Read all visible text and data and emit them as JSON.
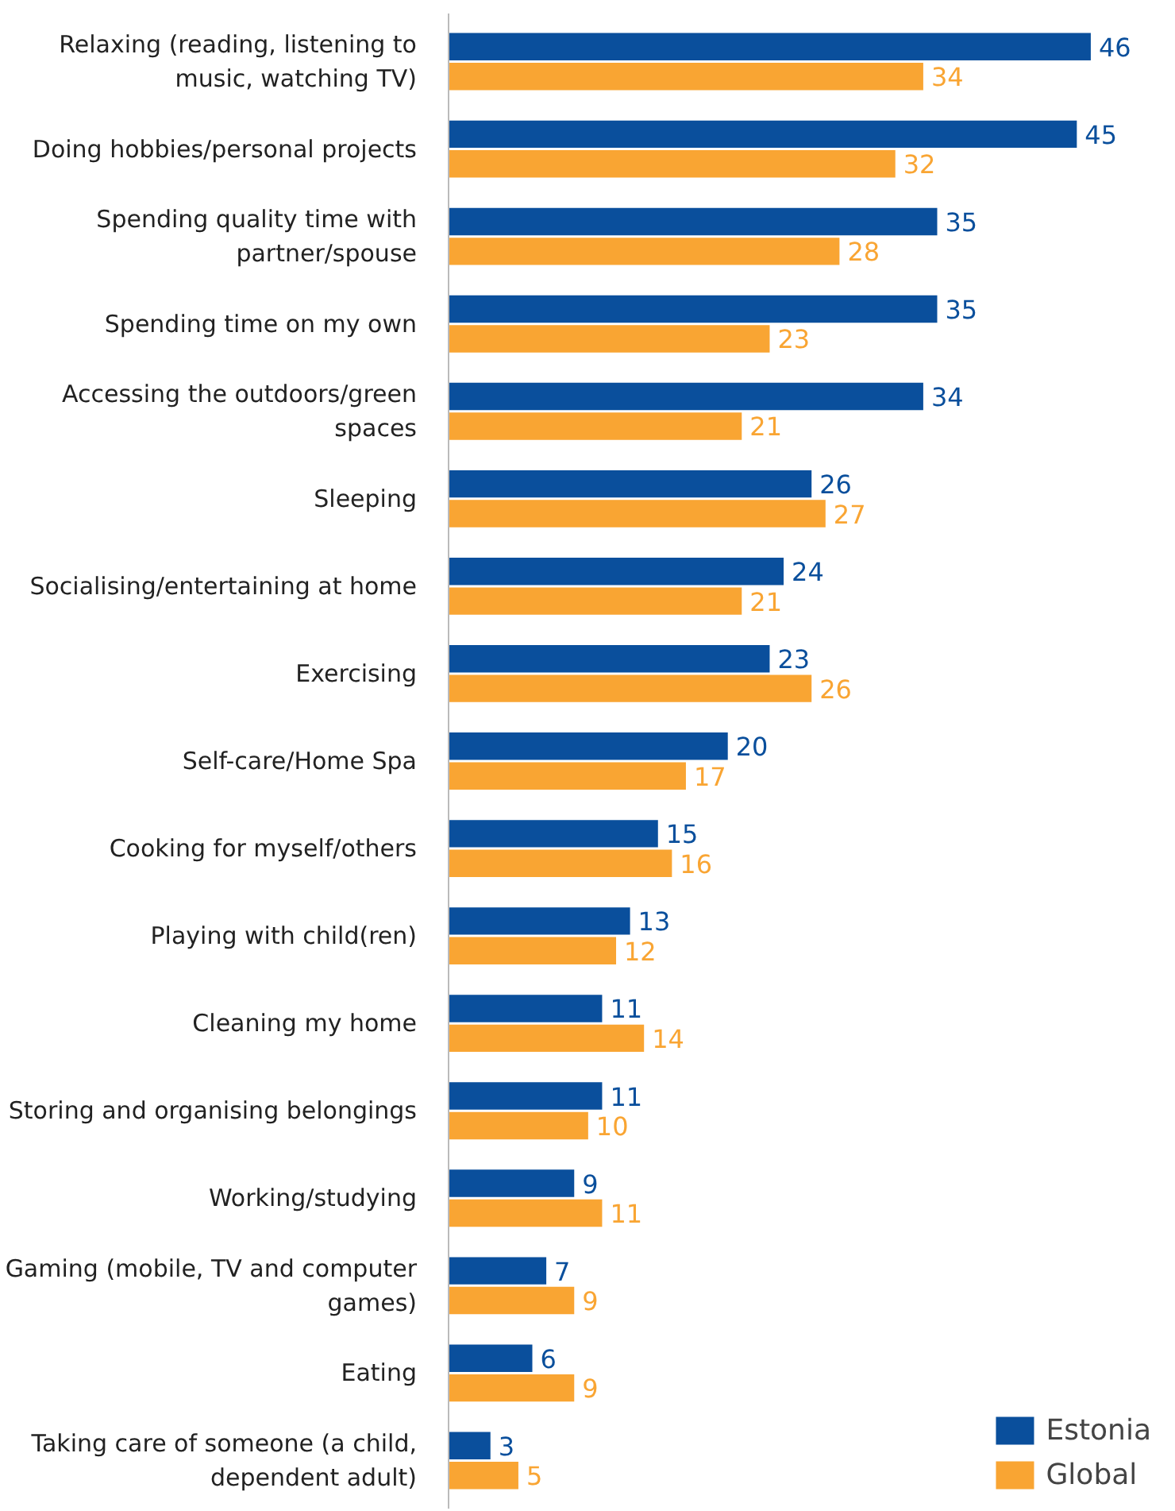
{
  "chart_data": {
    "type": "bar",
    "orientation": "horizontal",
    "categories": [
      "Relaxing (reading, listening to music, watching TV)",
      "Doing hobbies/personal projects",
      "Spending quality time with partner/spouse",
      "Spending time on my own",
      "Accessing the outdoors/green spaces",
      "Sleeping",
      "Socialising/entertaining at home",
      "Exercising",
      "Self-care/Home Spa",
      "Cooking for myself/others",
      "Playing with child(ren)",
      "Cleaning my home",
      "Storing and organising belongings",
      "Working/studying",
      "Gaming (mobile, TV and computer games)",
      "Eating",
      "Taking care of someone (a child, dependent adult)"
    ],
    "series": [
      {
        "name": "Estonia",
        "color": "#0a4f9c",
        "values": [
          46,
          45,
          35,
          35,
          34,
          26,
          24,
          23,
          20,
          15,
          13,
          11,
          11,
          9,
          7,
          6,
          3
        ]
      },
      {
        "name": "Global",
        "color": "#f9a533",
        "values": [
          34,
          32,
          28,
          23,
          21,
          27,
          21,
          26,
          17,
          16,
          12,
          14,
          10,
          11,
          9,
          9,
          5
        ]
      }
    ],
    "data_labels": true,
    "legend": "bottom right",
    "grid": false
  }
}
